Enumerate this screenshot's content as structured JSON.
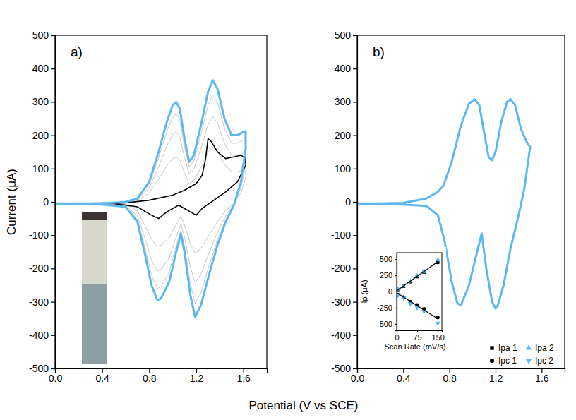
{
  "chart_data": [
    {
      "type": "line",
      "title": "a)",
      "x_label": "Potential (V vs SCE)",
      "y_label": "Current (μA)",
      "xlim": [
        0,
        1.8
      ],
      "xticks": [
        {
          "value": 0,
          "label": "0.0"
        },
        0.4,
        0.8,
        1.2,
        1.6
      ],
      "ylim": [
        -500,
        500
      ],
      "yticks": [
        -500,
        -400,
        -300,
        -200,
        -100,
        0,
        100,
        200,
        300,
        400,
        500
      ],
      "series": [
        {
          "color": "#c8c8c8",
          "x": [
            0.0,
            0.2,
            0.4,
            0.6,
            0.7,
            0.8,
            0.88,
            0.95,
            1.0,
            1.03,
            1.06,
            1.1,
            1.14,
            1.18,
            1.24,
            1.3,
            1.34,
            1.38,
            1.44,
            1.5,
            1.55,
            1.6,
            1.62,
            1.62,
            1.58,
            1.52,
            1.45,
            1.38,
            1.3,
            1.24,
            1.19,
            1.15,
            1.1,
            1.07,
            1.03,
            0.97,
            0.9,
            0.87,
            0.82,
            0.76,
            0.7,
            0.6,
            0.4,
            0.2,
            0.0
          ],
          "values": [
            -5,
            -5,
            -5,
            0,
            5,
            27,
            68,
            108,
            130,
            135,
            126,
            86,
            54,
            63,
            104,
            149,
            164,
            153,
            113,
            90,
            90,
            95,
            95,
            72,
            27,
            -5,
            -27,
            -59,
            -104,
            -140,
            -155,
            -126,
            -68,
            -43,
            -68,
            -108,
            -130,
            -133,
            -113,
            -68,
            -27,
            -7,
            -4,
            -3,
            -5
          ]
        },
        {
          "color": "#c8c8c8",
          "x": [
            0.0,
            0.2,
            0.4,
            0.6,
            0.7,
            0.8,
            0.88,
            0.95,
            1.0,
            1.03,
            1.06,
            1.1,
            1.14,
            1.18,
            1.24,
            1.3,
            1.34,
            1.38,
            1.44,
            1.5,
            1.55,
            1.6,
            1.62,
            1.62,
            1.58,
            1.52,
            1.45,
            1.38,
            1.3,
            1.24,
            1.19,
            1.15,
            1.1,
            1.07,
            1.03,
            0.97,
            0.9,
            0.87,
            0.82,
            0.76,
            0.7,
            0.6,
            0.4,
            0.2,
            0.0
          ],
          "values": [
            -5,
            -5,
            -5,
            0,
            7,
            42,
            105,
            168,
            203,
            210,
            196,
            133,
            84,
            98,
            161,
            231,
            256,
            238,
            175,
            140,
            140,
            147,
            148,
            112,
            42,
            -7,
            -42,
            -91,
            -161,
            -217,
            -242,
            -196,
            -105,
            -67,
            -105,
            -168,
            -203,
            -207,
            -175,
            -105,
            -42,
            -11,
            -6,
            -4,
            -5
          ]
        },
        {
          "color": "#c8c8c8",
          "x": [
            0.0,
            0.2,
            0.4,
            0.6,
            0.7,
            0.8,
            0.88,
            0.95,
            1.0,
            1.03,
            1.06,
            1.1,
            1.14,
            1.18,
            1.24,
            1.3,
            1.34,
            1.38,
            1.44,
            1.5,
            1.55,
            1.6,
            1.62,
            1.62,
            1.58,
            1.52,
            1.45,
            1.38,
            1.3,
            1.24,
            1.19,
            1.15,
            1.1,
            1.07,
            1.03,
            0.97,
            0.9,
            0.87,
            0.82,
            0.76,
            0.7,
            0.6,
            0.4,
            0.2,
            0.0
          ],
          "values": [
            -5,
            -5,
            -5,
            0,
            9,
            53,
            132,
            211,
            255,
            264,
            246,
            167,
            106,
            123,
            202,
            290,
            321,
            299,
            220,
            176,
            176,
            185,
            187,
            141,
            53,
            -9,
            -53,
            -114,
            -202,
            -273,
            -304,
            -246,
            -132,
            -84,
            -132,
            -211,
            -255,
            -260,
            -220,
            -132,
            -53,
            -13,
            -7,
            -5,
            -5
          ]
        },
        {
          "color": "#000000",
          "x": [
            0.0,
            0.6,
            0.8,
            1.0,
            1.1,
            1.2,
            1.25,
            1.28,
            1.3,
            1.33,
            1.38,
            1.45,
            1.52,
            1.58,
            1.62,
            1.62,
            1.55,
            1.45,
            1.35,
            1.25,
            1.2,
            1.15,
            1.05,
            0.95,
            0.88,
            0.82,
            0.7,
            0.5,
            0.0
          ],
          "values": [
            -5,
            -3,
            5,
            20,
            35,
            55,
            80,
            130,
            190,
            180,
            150,
            130,
            135,
            140,
            130,
            110,
            60,
            30,
            5,
            -20,
            -40,
            -30,
            -10,
            -30,
            -50,
            -40,
            -15,
            -5,
            -5
          ]
        },
        {
          "color": "#5bb8f0",
          "x": [
            0.0,
            0.2,
            0.4,
            0.6,
            0.7,
            0.8,
            0.88,
            0.95,
            1.0,
            1.03,
            1.06,
            1.1,
            1.14,
            1.18,
            1.24,
            1.3,
            1.34,
            1.38,
            1.44,
            1.5,
            1.55,
            1.6,
            1.62,
            1.62,
            1.58,
            1.52,
            1.45,
            1.38,
            1.3,
            1.24,
            1.19,
            1.15,
            1.1,
            1.07,
            1.03,
            0.97,
            0.9,
            0.87,
            0.82,
            0.76,
            0.7,
            0.6,
            0.4,
            0.2,
            0.0
          ],
          "values": [
            -5,
            -5,
            -5,
            0,
            10,
            60,
            150,
            240,
            290,
            300,
            280,
            190,
            120,
            140,
            230,
            330,
            365,
            340,
            250,
            200,
            200,
            210,
            212,
            160,
            60,
            -10,
            -60,
            -130,
            -230,
            -310,
            -345,
            -280,
            -150,
            -95,
            -150,
            -240,
            -290,
            -295,
            -250,
            -150,
            -60,
            -15,
            -8,
            -6,
            -5
          ]
        }
      ]
    },
    {
      "type": "line",
      "title": "b)",
      "xlim": [
        0,
        1.8
      ],
      "xticks": [
        {
          "value": 0,
          "label": "0.0"
        },
        0.4,
        0.8,
        1.2,
        1.6
      ],
      "ylim": [
        -500,
        500
      ],
      "yticks": [
        -500,
        -400,
        -300,
        -200,
        -100,
        0,
        100,
        200,
        300,
        400,
        500
      ],
      "series": [
        {
          "color": "#5bb8f0",
          "x": [
            0.0,
            0.2,
            0.4,
            0.6,
            0.7,
            0.75,
            0.82,
            0.9,
            0.97,
            1.02,
            1.06,
            1.1,
            1.14,
            1.17,
            1.2,
            1.25,
            1.3,
            1.33,
            1.37,
            1.42,
            1.47,
            1.5,
            1.5,
            1.45,
            1.4,
            1.33,
            1.27,
            1.22,
            1.2,
            1.17,
            1.12,
            1.08,
            1.04,
            0.97,
            0.9,
            0.87,
            0.82,
            0.76,
            0.7,
            0.6,
            0.4,
            0.2,
            0.0
          ],
          "values": [
            -5,
            -5,
            -3,
            10,
            30,
            50,
            120,
            230,
            295,
            308,
            290,
            210,
            135,
            125,
            150,
            240,
            300,
            308,
            290,
            220,
            180,
            165,
            165,
            40,
            -40,
            -140,
            -250,
            -310,
            -320,
            -300,
            -200,
            -95,
            -150,
            -250,
            -310,
            -305,
            -240,
            -120,
            -40,
            -12,
            -8,
            -6,
            -5
          ]
        }
      ],
      "inset": {
        "type": "scatter",
        "x_label": "Scan Rate (mV/s)",
        "y_label": "Ip (μA)",
        "xlim": [
          0,
          165
        ],
        "xticks": [
          0,
          75,
          150
        ],
        "ylim": [
          -600,
          600
        ],
        "yticks": [
          -500,
          -250,
          0,
          250,
          500
        ],
        "legend": "bottom-right",
        "series": [
          {
            "name": "Ipa 1",
            "color": "#000000",
            "marker": "square",
            "x": [
              5,
              25,
              50,
              75,
              100,
              150
            ],
            "values": [
              30,
              80,
              150,
              230,
              300,
              450
            ]
          },
          {
            "name": "Ipc 1",
            "color": "#000000",
            "marker": "circle",
            "x": [
              5,
              25,
              50,
              75,
              100,
              150
            ],
            "values": [
              -50,
              -90,
              -160,
              -210,
              -270,
              -400
            ]
          },
          {
            "name": "Ipa 2",
            "color": "#5bb8f0",
            "marker": "triangle",
            "x": [
              5,
              25,
              50,
              75,
              100,
              150
            ],
            "values": [
              35,
              85,
              160,
              245,
              310,
              490
            ]
          },
          {
            "name": "Ipc 2",
            "color": "#5bb8f0",
            "marker": "triangle-down",
            "x": [
              5,
              25,
              50,
              75,
              100,
              150
            ],
            "values": [
              -55,
              -100,
              -190,
              -250,
              -310,
              -490
            ]
          },
          {
            "type": "line",
            "color": "#000000",
            "x": [
              0,
              150
            ],
            "values": [
              10,
              460
            ]
          },
          {
            "type": "line",
            "color": "#000000",
            "x": [
              0,
              150
            ],
            "values": [
              -20,
              -420
            ]
          }
        ]
      }
    }
  ]
}
